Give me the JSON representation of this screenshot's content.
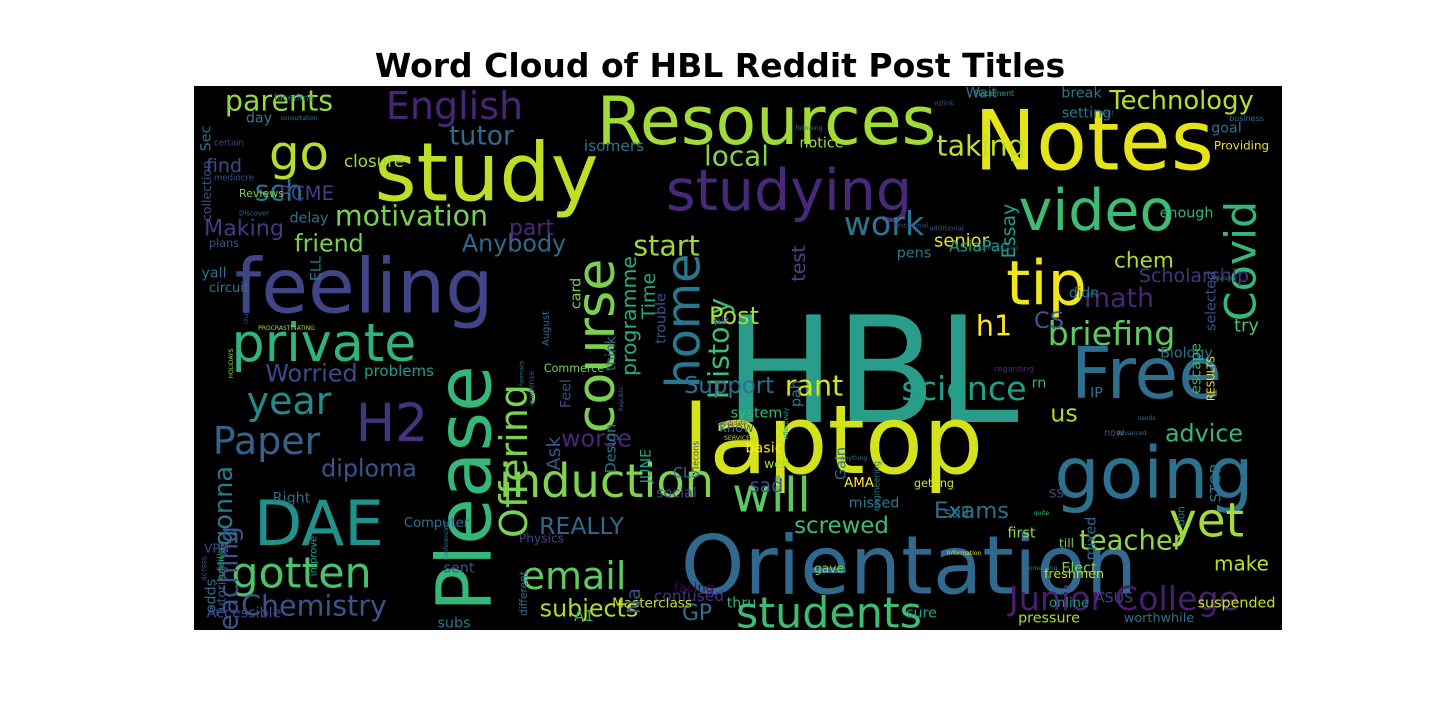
{
  "chart_data": {
    "type": "wordcloud",
    "title": "Word Cloud of HBL Reddit Post Titles",
    "background": "#000000",
    "colormap": "viridis",
    "words": [
      {
        "text": "HBL",
        "color": "#2a9d8a"
      },
      {
        "text": "laptop",
        "color": "#d4e21a"
      },
      {
        "text": "feeling",
        "color": "#414487"
      },
      {
        "text": "Please",
        "color": "#35b779"
      },
      {
        "text": "Free",
        "color": "#2e6e8e"
      },
      {
        "text": "Orientation",
        "color": "#31688e"
      },
      {
        "text": "study",
        "color": "#bddf26"
      },
      {
        "text": "Notes",
        "color": "#e5e419"
      },
      {
        "text": "Resources",
        "color": "#a2da37"
      },
      {
        "text": "DAE",
        "color": "#21918c"
      },
      {
        "text": "going",
        "color": "#2c728e"
      },
      {
        "text": "studying",
        "color": "#482878"
      },
      {
        "text": "course",
        "color": "#7ad151"
      },
      {
        "text": "video",
        "color": "#3fbc73"
      },
      {
        "text": "private",
        "color": "#2fb47c"
      },
      {
        "text": "tip",
        "color": "#f1e51d"
      },
      {
        "text": "H2",
        "color": "#46337e"
      },
      {
        "text": "induction",
        "color": "#7fd34e"
      },
      {
        "text": "will",
        "color": "#5ec962"
      },
      {
        "text": "go",
        "color": "#b5de2b"
      },
      {
        "text": "English",
        "color": "#482576"
      },
      {
        "text": "gotten",
        "color": "#4ac16d"
      },
      {
        "text": "Covid",
        "color": "#35b779"
      },
      {
        "text": "students",
        "color": "#3fbc73"
      },
      {
        "text": "Junior College",
        "color": "#481f70"
      },
      {
        "text": "yet",
        "color": "#a5db36"
      },
      {
        "text": "email",
        "color": "#5ec962"
      },
      {
        "text": "Paper",
        "color": "#33638d"
      },
      {
        "text": "year",
        "color": "#228c8d"
      },
      {
        "text": "home",
        "color": "#2a788e"
      },
      {
        "text": "Offering",
        "color": "#7ad151"
      },
      {
        "text": "Chemistry",
        "color": "#3b528b"
      },
      {
        "text": "briefing",
        "color": "#5ec962"
      },
      {
        "text": "teacher",
        "color": "#90d743"
      },
      {
        "text": "science",
        "color": "#1fa187"
      },
      {
        "text": "parents",
        "color": "#95d840"
      },
      {
        "text": "Technology",
        "color": "#b8de29"
      },
      {
        "text": "work",
        "color": "#2b758e"
      },
      {
        "text": "motivation",
        "color": "#7ad151"
      },
      {
        "text": "start",
        "color": "#9bd93c"
      },
      {
        "text": "History",
        "color": "#3dbc74"
      },
      {
        "text": "programme",
        "color": "#25ac82"
      },
      {
        "text": "screwed",
        "color": "#3dbc74"
      },
      {
        "text": "REALLY",
        "color": "#31688e"
      },
      {
        "text": "rant",
        "color": "#d8e219"
      },
      {
        "text": "math",
        "color": "#482677"
      },
      {
        "text": "chem",
        "color": "#addc30"
      },
      {
        "text": "sch",
        "color": "#2c728e"
      },
      {
        "text": "h1",
        "color": "#fde725"
      },
      {
        "text": "CS",
        "color": "#365d8d"
      },
      {
        "text": "Support",
        "color": "#2e6f8e"
      },
      {
        "text": "Exams",
        "color": "#2d708e"
      },
      {
        "text": "diploma",
        "color": "#3b528b"
      },
      {
        "text": "make",
        "color": "#bddf26"
      },
      {
        "text": "us",
        "color": "#a8db34"
      },
      {
        "text": "advice",
        "color": "#35b779"
      },
      {
        "text": "subjects",
        "color": "#b0dd2f"
      },
      {
        "text": "taking",
        "color": "#c2df23"
      },
      {
        "text": "local",
        "color": "#84d44b"
      },
      {
        "text": "Anybody",
        "color": "#31688e"
      },
      {
        "text": "friend",
        "color": "#7ad151"
      },
      {
        "text": "Worried",
        "color": "#3e4a89"
      },
      {
        "text": "gonna",
        "color": "#2a788e"
      },
      {
        "text": "teaching",
        "color": "#3b528b"
      },
      {
        "text": "worse",
        "color": "#482878"
      },
      {
        "text": "Making",
        "color": "#443983"
      },
      {
        "text": "tutor",
        "color": "#31688e"
      },
      {
        "text": "PCME",
        "color": "#433e85"
      },
      {
        "text": "part",
        "color": "#482878"
      },
      {
        "text": "GP",
        "color": "#2c728e"
      },
      {
        "text": "Post",
        "color": "#a5db36"
      },
      {
        "text": "Scholarship",
        "color": "#46337e"
      },
      {
        "text": "closure",
        "color": "#a0da39"
      },
      {
        "text": "find",
        "color": "#3e4a89"
      },
      {
        "text": "problems",
        "color": "#1f9e89"
      },
      {
        "text": "isomers",
        "color": "#2a788e"
      },
      {
        "text": "test",
        "color": "#3e4a89"
      },
      {
        "text": "senior",
        "color": "#e2e418"
      },
      {
        "text": "AsiaPac",
        "color": "#1fa187"
      },
      {
        "text": "try",
        "color": "#4ac16d"
      },
      {
        "text": "confused",
        "color": "#46337e"
      },
      {
        "text": "sad",
        "color": "#3b528b"
      },
      {
        "text": "Time",
        "color": "#22a884"
      },
      {
        "text": "Essay",
        "color": "#1f9e89"
      },
      {
        "text": "Biology",
        "color": "#2c728e"
      },
      {
        "text": "RESULTS",
        "color": "#f6e620"
      },
      {
        "text": "Commerce",
        "color": "#7ad151"
      },
      {
        "text": "Design",
        "color": "#2a788e"
      },
      {
        "text": "Feel",
        "color": "#3e4a89"
      },
      {
        "text": "Ask",
        "color": "#3b528b"
      },
      {
        "text": "JUNE",
        "color": "#1fa187"
      },
      {
        "text": "CLS",
        "color": "#2c728e"
      },
      {
        "text": "AMA",
        "color": "#fde725"
      },
      {
        "text": "Masterclass",
        "color": "#c8e020"
      },
      {
        "text": "A1",
        "color": "#2fb47c"
      },
      {
        "text": "Physics",
        "color": "#3e4a89"
      },
      {
        "text": "Computer",
        "color": "#2c728e"
      },
      {
        "text": "engineering",
        "color": "#2a788e"
      },
      {
        "text": "getting",
        "color": "#d0e11c"
      },
      {
        "text": "mixed",
        "color": "#31688e"
      },
      {
        "text": "don",
        "color": "#2c728e"
      },
      {
        "text": "still",
        "color": "#2a788e"
      },
      {
        "text": "first",
        "color": "#95d840"
      },
      {
        "text": "freshmen",
        "color": "#c2df23"
      },
      {
        "text": "online",
        "color": "#21918c"
      },
      {
        "text": "pressure",
        "color": "#addc30"
      },
      {
        "text": "suspended",
        "color": "#cae11f"
      },
      {
        "text": "worthwhile",
        "color": "#2c728e"
      },
      {
        "text": "ASUS",
        "color": "#414487"
      },
      {
        "text": "period",
        "color": "#482878"
      },
      {
        "text": "sure",
        "color": "#1f9e89"
      },
      {
        "text": "facing",
        "color": "#440154"
      },
      {
        "text": "Na",
        "color": "#3b528b"
      },
      {
        "text": "plz",
        "color": "#3b528b"
      },
      {
        "text": "thru",
        "color": "#2fb47c"
      },
      {
        "text": "subs",
        "color": "#2a788e"
      },
      {
        "text": "different",
        "color": "#2c728e"
      },
      {
        "text": "Accessible",
        "color": "#3e4a89"
      },
      {
        "text": "odds",
        "color": "#31688e"
      },
      {
        "text": "Tutoring",
        "color": "#3b528b"
      },
      {
        "text": "failing",
        "color": "#2a788e"
      },
      {
        "text": "VPN",
        "color": "#3e4a89"
      },
      {
        "text": "economics",
        "color": "#35b779"
      },
      {
        "text": "across",
        "color": "#3b528b"
      },
      {
        "text": "improve",
        "color": "#1fa187"
      },
      {
        "text": "conferencing",
        "color": "#2c728e"
      },
      {
        "text": "Right",
        "color": "#31688e"
      },
      {
        "text": "circuit",
        "color": "#2a788e"
      },
      {
        "text": "HOLIDAYS",
        "color": "#95d840"
      },
      {
        "text": "PROCRASTINATING",
        "color": "#a5db36"
      },
      {
        "text": "trouble",
        "color": "#3b528b"
      },
      {
        "text": "card",
        "color": "#7ad151"
      },
      {
        "text": "formats",
        "color": "#2a788e"
      },
      {
        "text": "immense",
        "color": "#3b528b"
      },
      {
        "text": "think",
        "color": "#31688e"
      },
      {
        "text": "know",
        "color": "#2c728e"
      },
      {
        "text": "sent",
        "color": "#3b528b"
      },
      {
        "text": "missed",
        "color": "#2a788e"
      },
      {
        "text": "Republic",
        "color": "#3b528b"
      },
      {
        "text": "August",
        "color": "#31688e"
      },
      {
        "text": "basic",
        "color": "#fde725"
      },
      {
        "text": "system",
        "color": "#35b779"
      },
      {
        "text": "social",
        "color": "#3e4a89"
      },
      {
        "text": "Candidate",
        "color": "#481f70"
      },
      {
        "text": "SERVICES",
        "color": "#addc30"
      },
      {
        "text": "well",
        "color": "#a0da39"
      },
      {
        "text": "effectively",
        "color": "#1fa187"
      },
      {
        "text": "gave",
        "color": "#7ad151"
      },
      {
        "text": "pah",
        "color": "#2a788e"
      },
      {
        "text": "econs",
        "color": "#3b528b"
      },
      {
        "text": "following",
        "color": "#2a788e"
      },
      {
        "text": "anything",
        "color": "#2c728e"
      },
      {
        "text": "testimonial",
        "color": "#3e4a89"
      },
      {
        "text": "Information",
        "color": "#d8e219"
      },
      {
        "text": "pens",
        "color": "#2a788e"
      },
      {
        "text": "Gain",
        "color": "#2c728e"
      },
      {
        "text": "additional",
        "color": "#3b528b"
      },
      {
        "text": "unmotivated",
        "color": "#3b528b"
      },
      {
        "text": "regarding",
        "color": "#482878"
      },
      {
        "text": "quite",
        "color": "#3dbc74"
      },
      {
        "text": "till",
        "color": "#7ad151"
      },
      {
        "text": "something",
        "color": "#2a788e"
      },
      {
        "text": "IP",
        "color": "#2c728e"
      },
      {
        "text": "rn",
        "color": "#2fb47c"
      },
      {
        "text": "SS",
        "color": "#3b528b"
      },
      {
        "text": "Elect",
        "color": "#7ad151"
      },
      {
        "text": "now",
        "color": "#3e4a89"
      },
      {
        "text": "Advanced",
        "color": "#2a788e"
      },
      {
        "text": "needs",
        "color": "#31688e"
      },
      {
        "text": "STOP",
        "color": "#2c728e"
      },
      {
        "text": "didn",
        "color": "#2a788e"
      },
      {
        "text": "enough",
        "color": "#2fb47c"
      },
      {
        "text": "escape",
        "color": "#35b779"
      },
      {
        "text": "selected",
        "color": "#3b528b"
      },
      {
        "text": "Advisory",
        "color": "#2a788e"
      },
      {
        "text": "Providing",
        "color": "#e5e419"
      },
      {
        "text": "goal",
        "color": "#2c728e"
      },
      {
        "text": "business",
        "color": "#31688e"
      },
      {
        "text": "want",
        "color": "#3b528b"
      },
      {
        "text": "setting",
        "color": "#2a788e"
      },
      {
        "text": "Wait",
        "color": "#2c728e"
      },
      {
        "text": "Placement",
        "color": "#1fa187"
      },
      {
        "text": "break",
        "color": "#2a788e"
      },
      {
        "text": "ezlink",
        "color": "#3b528b"
      },
      {
        "text": "day",
        "color": "#2a788e"
      },
      {
        "text": "consultation",
        "color": "#2a788e"
      },
      {
        "text": "Sec",
        "color": "#2c728e"
      },
      {
        "text": "collection",
        "color": "#3b528b"
      },
      {
        "text": "certain",
        "color": "#3e4a89"
      },
      {
        "text": "notice",
        "color": "#a5db36"
      },
      {
        "text": "facetime",
        "color": "#2a788e"
      },
      {
        "text": "mediocre",
        "color": "#3b528b"
      },
      {
        "text": "Reviews",
        "color": "#7ad151"
      },
      {
        "text": "Discover",
        "color": "#31688e"
      },
      {
        "text": "delay",
        "color": "#2c728e"
      },
      {
        "text": "plans",
        "color": "#3b528b"
      },
      {
        "text": "ELL",
        "color": "#2a788e"
      },
      {
        "text": "chapters",
        "color": "#3b528b"
      },
      {
        "text": "yall",
        "color": "#2c728e"
      },
      {
        "text": "SBQ",
        "color": "#3b528b"
      }
    ]
  }
}
